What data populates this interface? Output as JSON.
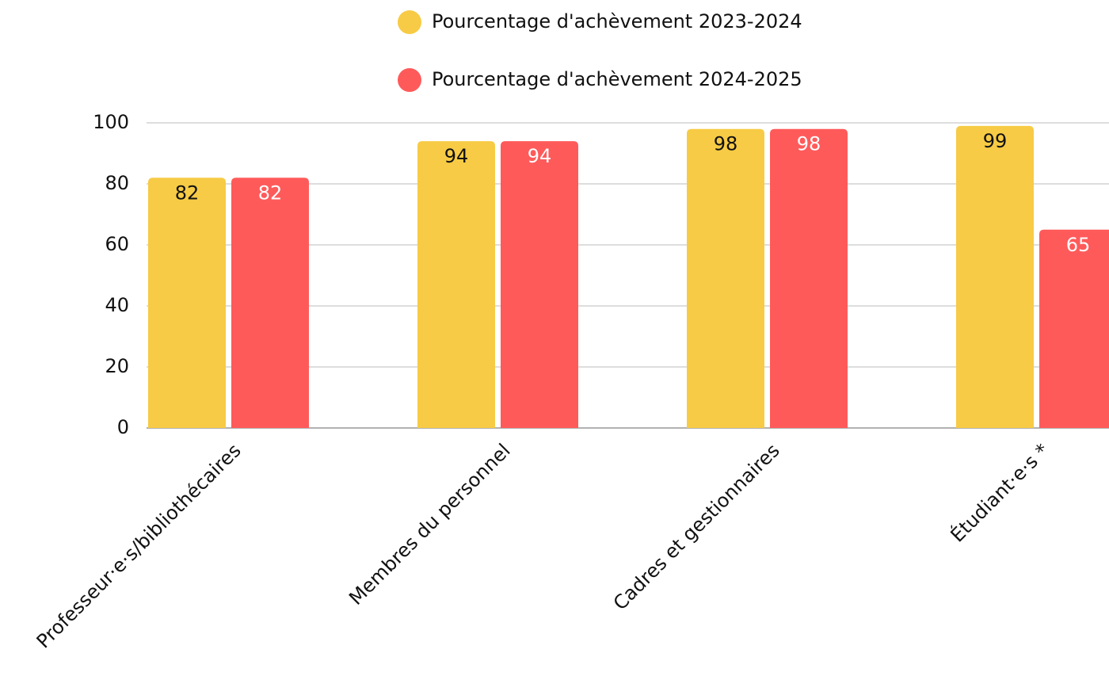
{
  "chart_data": {
    "type": "bar",
    "categories": [
      "Professeur·e·s/bibliothécaires",
      "Membres du personnel",
      "Cadres et gestionnaires",
      "Étudiant·e·s *"
    ],
    "series": [
      {
        "name": "Pourcentage d'achèvement 2023-2024",
        "color": "#f7cb45",
        "values": [
          82,
          94,
          98,
          99
        ]
      },
      {
        "name": "Pourcentage d'achèvement 2024-2025",
        "color": "#ff5a5a",
        "values": [
          82,
          94,
          98,
          65
        ]
      }
    ],
    "ylim": [
      0,
      100
    ],
    "yticks": [
      0,
      20,
      40,
      60,
      80,
      100
    ],
    "grid": true
  }
}
